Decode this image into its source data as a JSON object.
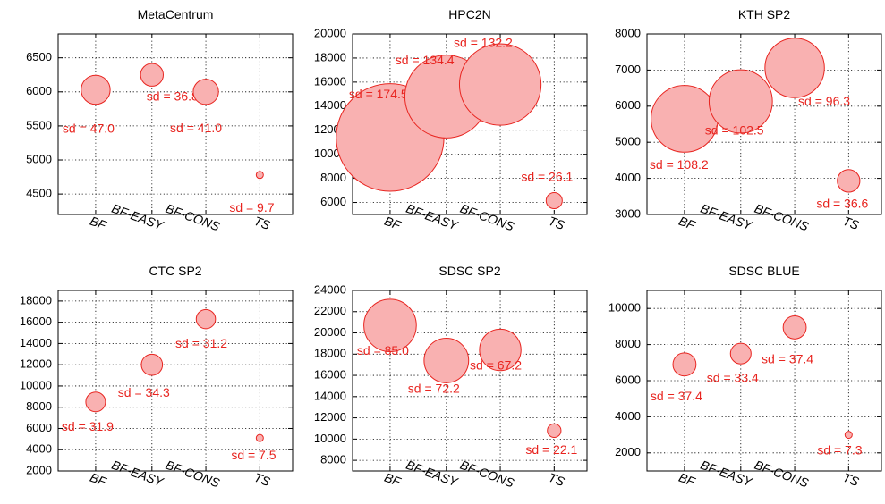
{
  "colors": {
    "bubble_fill": "#f9b1b1",
    "bubble_stroke": "#e8241f",
    "label": "#e8241f"
  },
  "chart_data": [
    {
      "type": "scatter",
      "title": "MetaCentrum",
      "categories": [
        "BF",
        "BF-EASY",
        "BF-CONS",
        "TS"
      ],
      "ylim": [
        4200,
        6850
      ],
      "yticks": [
        4500,
        5000,
        5500,
        6000,
        6500
      ],
      "grid": true,
      "points": [
        {
          "category": "BF",
          "y": 6030,
          "sd": 47.0,
          "label": "sd = 47.0"
        },
        {
          "category": "BF-EASY",
          "y": 6250,
          "sd": 36.8,
          "label": "sd = 36.8"
        },
        {
          "category": "BF-CONS",
          "y": 6000,
          "sd": 41.0,
          "label": "sd = 41.0"
        },
        {
          "category": "TS",
          "y": 4780,
          "sd": 9.7,
          "label": "sd = 9.7"
        }
      ]
    },
    {
      "type": "scatter",
      "title": "HPC2N",
      "categories": [
        "BF",
        "BF-EASY",
        "BF-CONS",
        "TS"
      ],
      "ylim": [
        5000,
        20000
      ],
      "yticks": [
        6000,
        8000,
        10000,
        12000,
        14000,
        16000,
        18000,
        20000
      ],
      "grid": true,
      "points": [
        {
          "category": "BF",
          "y": 11400,
          "sd": 174.5,
          "label": "sd = 174.5"
        },
        {
          "category": "BF-EASY",
          "y": 14800,
          "sd": 134.4,
          "label": "sd = 134.4"
        },
        {
          "category": "BF-CONS",
          "y": 15800,
          "sd": 132.2,
          "label": "sd = 132.2"
        },
        {
          "category": "TS",
          "y": 6150,
          "sd": 26.1,
          "label": "sd = 26.1"
        }
      ]
    },
    {
      "type": "scatter",
      "title": "KTH SP2",
      "categories": [
        "BF",
        "BF-EASY",
        "BF-CONS",
        "TS"
      ],
      "ylim": [
        3000,
        8000
      ],
      "yticks": [
        3000,
        4000,
        5000,
        6000,
        7000,
        8000
      ],
      "grid": true,
      "points": [
        {
          "category": "BF",
          "y": 5650,
          "sd": 108.2,
          "label": "sd = 108.2"
        },
        {
          "category": "BF-EASY",
          "y": 6130,
          "sd": 102.5,
          "label": "sd = 102.5"
        },
        {
          "category": "BF-CONS",
          "y": 7060,
          "sd": 96.3,
          "label": "sd = 96.3"
        },
        {
          "category": "TS",
          "y": 3930,
          "sd": 36.6,
          "label": "sd = 36.6"
        }
      ]
    },
    {
      "type": "scatter",
      "title": "CTC SP2",
      "categories": [
        "BF",
        "BF-EASY",
        "BF-CONS",
        "TS"
      ],
      "ylim": [
        2000,
        19000
      ],
      "yticks": [
        2000,
        4000,
        6000,
        8000,
        10000,
        12000,
        14000,
        16000,
        18000
      ],
      "grid": true,
      "points": [
        {
          "category": "BF",
          "y": 8500,
          "sd": 31.9,
          "label": "sd = 31.9"
        },
        {
          "category": "BF-EASY",
          "y": 12000,
          "sd": 34.3,
          "label": "sd = 34.3"
        },
        {
          "category": "BF-CONS",
          "y": 16300,
          "sd": 31.2,
          "label": "sd = 31.2"
        },
        {
          "category": "TS",
          "y": 5100,
          "sd": 7.5,
          "label": "sd = 7.5"
        }
      ]
    },
    {
      "type": "scatter",
      "title": "SDSC SP2",
      "categories": [
        "BF",
        "BF-EASY",
        "BF-CONS",
        "TS"
      ],
      "ylim": [
        7000,
        24000
      ],
      "yticks": [
        8000,
        10000,
        12000,
        14000,
        16000,
        18000,
        20000,
        22000,
        24000
      ],
      "grid": true,
      "points": [
        {
          "category": "BF",
          "y": 20700,
          "sd": 85.0,
          "label": "sd = 85.0"
        },
        {
          "category": "BF-EASY",
          "y": 17400,
          "sd": 72.2,
          "label": "sd = 72.2"
        },
        {
          "category": "BF-CONS",
          "y": 18400,
          "sd": 67.2,
          "label": "sd = 67.2"
        },
        {
          "category": "TS",
          "y": 10800,
          "sd": 22.1,
          "label": "sd = 22.1"
        }
      ]
    },
    {
      "type": "scatter",
      "title": "SDSC BLUE",
      "categories": [
        "BF",
        "BF-EASY",
        "BF-CONS",
        "TS"
      ],
      "ylim": [
        1000,
        11000
      ],
      "yticks": [
        2000,
        4000,
        6000,
        8000,
        10000
      ],
      "grid": true,
      "points": [
        {
          "category": "BF",
          "y": 6900,
          "sd": 37.4,
          "label": "sd = 37.4"
        },
        {
          "category": "BF-EASY",
          "y": 7500,
          "sd": 33.4,
          "label": "sd = 33.4"
        },
        {
          "category": "BF-CONS",
          "y": 8950,
          "sd": 37.4,
          "label": "sd = 37.4"
        },
        {
          "category": "TS",
          "y": 3000,
          "sd": 7.3,
          "label": "sd = 7.3"
        }
      ]
    }
  ]
}
